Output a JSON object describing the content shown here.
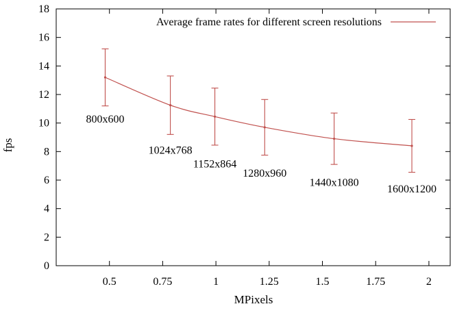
{
  "chart_data": {
    "type": "line",
    "title": "",
    "xlabel": "MPixels",
    "ylabel": "fps",
    "xlim": [
      0.25,
      2.1
    ],
    "ylim": [
      0,
      18
    ],
    "x_ticks": [
      "0.5",
      "0.75",
      "1",
      "1.25",
      "1.5",
      "1.75",
      "2"
    ],
    "y_ticks": [
      "0",
      "2",
      "4",
      "6",
      "8",
      "10",
      "12",
      "14",
      "16",
      "18"
    ],
    "grid": false,
    "legend_position": "top-right",
    "series": [
      {
        "name": "Average frame rates for different screen resolutions",
        "color": "#c0504d",
        "error_bars": true,
        "points": [
          {
            "label": "800x600",
            "x": 0.48,
            "y": 13.2,
            "err_low": 11.2,
            "err_high": 15.2
          },
          {
            "label": "1024x768",
            "x": 0.786,
            "y": 11.25,
            "err_low": 9.2,
            "err_high": 13.3
          },
          {
            "label": "1152x864",
            "x": 0.995,
            "y": 10.45,
            "err_low": 8.45,
            "err_high": 12.45
          },
          {
            "label": "1280x960",
            "x": 1.229,
            "y": 9.7,
            "err_low": 7.75,
            "err_high": 11.65
          },
          {
            "label": "1440x1080",
            "x": 1.555,
            "y": 8.9,
            "err_low": 7.1,
            "err_high": 10.7
          },
          {
            "label": "1600x1200",
            "x": 1.92,
            "y": 8.4,
            "err_low": 6.55,
            "err_high": 10.25
          }
        ]
      }
    ]
  }
}
